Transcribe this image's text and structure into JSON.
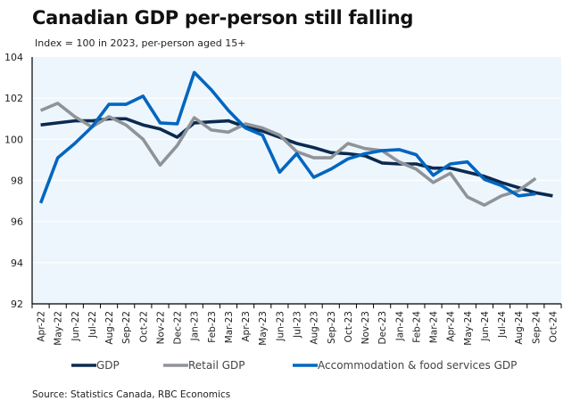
{
  "chart_data": {
    "type": "line",
    "title": "Canadian GDP per-person still falling",
    "subtitle": "Index = 100 in 2023, per-person aged 15+",
    "source": "Source: Statistics Canada, RBC Economics",
    "xlabel": "",
    "ylabel": "",
    "ylim": [
      92,
      104
    ],
    "yticks": [
      92,
      94,
      96,
      98,
      100,
      102,
      104
    ],
    "grid": true,
    "legend_position": "bottom",
    "x": [
      "Apr-22",
      "May-22",
      "Jun-22",
      "Jul-22",
      "Aug-22",
      "Sep-22",
      "Oct-22",
      "Nov-22",
      "Dec-22",
      "Jan-23",
      "Feb-23",
      "Mar-23",
      "Apr-23",
      "May-23",
      "Jun-23",
      "Jul-23",
      "Aug-23",
      "Sep-23",
      "Oct-23",
      "Nov-23",
      "Dec-23",
      "Jan-24",
      "Feb-24",
      "Mar-24",
      "Apr-24",
      "May-24",
      "Jun-24",
      "Jul-24",
      "Aug-24",
      "Sep-24",
      "Oct-24"
    ],
    "series": [
      {
        "name": "GDP",
        "color": "#0b2a4f",
        "values": [
          100.7,
          100.8,
          100.9,
          100.9,
          101.0,
          101.0,
          100.7,
          100.5,
          100.1,
          100.8,
          100.85,
          100.9,
          100.6,
          100.4,
          100.1,
          99.8,
          99.6,
          99.35,
          99.3,
          99.2,
          98.85,
          98.8,
          98.8,
          98.6,
          98.6,
          98.4,
          98.2,
          97.9,
          97.65,
          97.4,
          97.25
        ]
      },
      {
        "name": "Retail GDP",
        "color": "#8f9498",
        "values": [
          101.4,
          101.75,
          101.1,
          100.6,
          101.1,
          100.7,
          100.0,
          98.75,
          99.7,
          101.05,
          100.45,
          100.35,
          100.75,
          100.55,
          100.2,
          99.4,
          99.1,
          99.1,
          99.8,
          99.55,
          99.45,
          98.9,
          98.55,
          97.9,
          98.35,
          97.2,
          96.8,
          97.25,
          97.5,
          98.1,
          null
        ]
      },
      {
        "name": "Accommodation & food services GDP",
        "color": "#0066c0",
        "values": [
          96.9,
          99.1,
          99.8,
          100.6,
          101.7,
          101.7,
          102.1,
          100.8,
          100.75,
          103.25,
          102.4,
          101.4,
          100.55,
          100.2,
          98.4,
          99.3,
          98.15,
          98.55,
          99.05,
          99.3,
          99.45,
          99.5,
          99.25,
          98.25,
          98.8,
          98.9,
          98.05,
          97.75,
          97.25,
          97.35,
          null
        ]
      }
    ]
  }
}
